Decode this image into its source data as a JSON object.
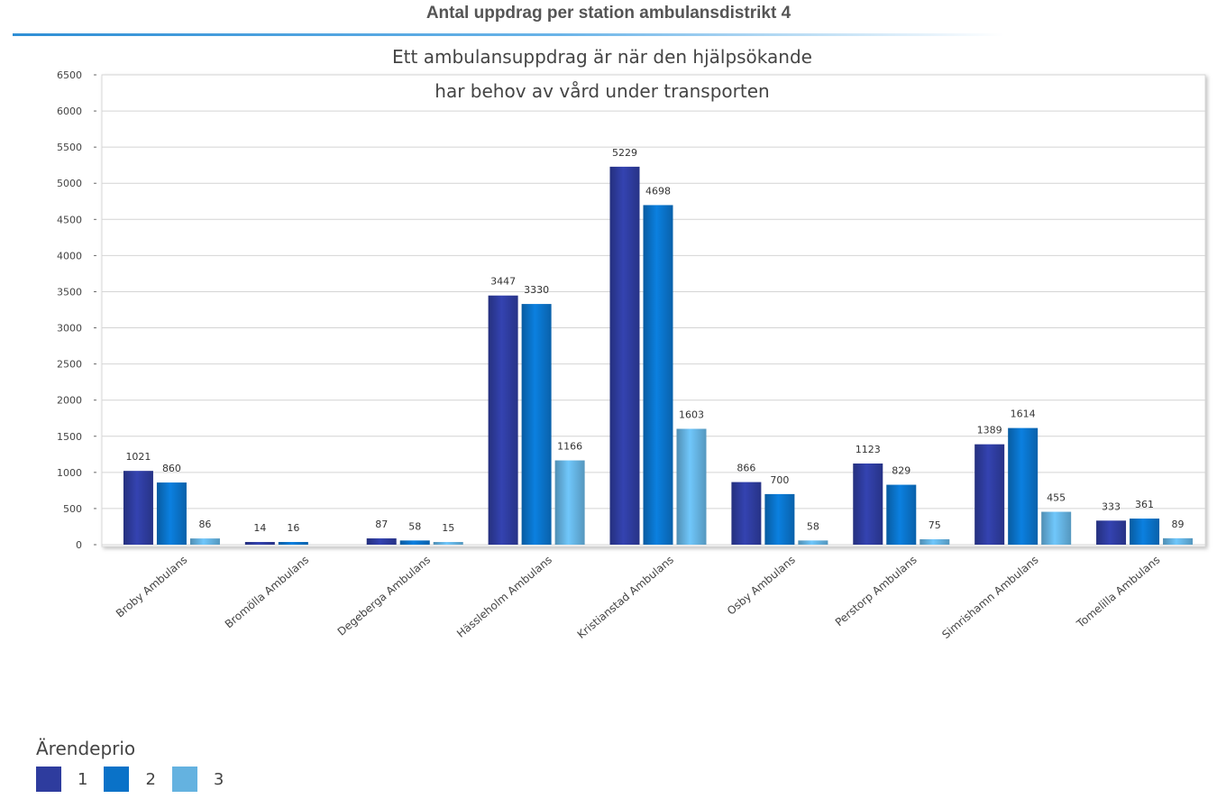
{
  "chart_data": {
    "type": "bar",
    "title": "Antal uppdrag per station ambulansdistrikt 4",
    "subtitle_lines": [
      "Ett ambulansuppdrag är när den hjälpsökande",
      "har behov av vård under transporten"
    ],
    "xlabel": "",
    "ylabel": "",
    "ylim": [
      0,
      6500
    ],
    "yticks": [
      "0",
      "500",
      "1000",
      "1500",
      "2000",
      "2500",
      "3000",
      "3500",
      "4000",
      "4500",
      "5000",
      "5500",
      "6000",
      "6500"
    ],
    "grid": true,
    "legend_title": "Ärendeprio",
    "legend_position": "bottom-left",
    "categories": [
      "Broby Ambulans",
      "Bromölla Ambulans",
      "Degeberga Ambulans",
      "Hässleholm Ambulans",
      "Kristianstad  Ambulans",
      "Osby Ambulans",
      "Perstorp Ambulans",
      "Simrishamn Ambulans",
      "Tomelilla Ambulans"
    ],
    "series": [
      {
        "name": "1",
        "color": "#2e3c9e",
        "values": [
          1021,
          14,
          87,
          3447,
          5229,
          866,
          1123,
          1389,
          333
        ],
        "labels": [
          "1021",
          "14",
          "87",
          "3447",
          "5229",
          "866",
          "1123",
          "1389",
          "333"
        ]
      },
      {
        "name": "2",
        "color": "#0a72c8",
        "values": [
          860,
          16,
          58,
          3330,
          4698,
          700,
          829,
          1614,
          361
        ],
        "labels": [
          "860",
          "16",
          "58",
          "3330",
          "4698",
          "700",
          "829",
          "1614",
          "361"
        ]
      },
      {
        "name": "3",
        "color": "#64b2e0",
        "values": [
          86,
          null,
          15,
          1166,
          1603,
          58,
          75,
          455,
          89
        ],
        "labels": [
          "86",
          "",
          "15",
          "1166",
          "1603",
          "58",
          "75",
          "455",
          "89"
        ]
      }
    ]
  }
}
